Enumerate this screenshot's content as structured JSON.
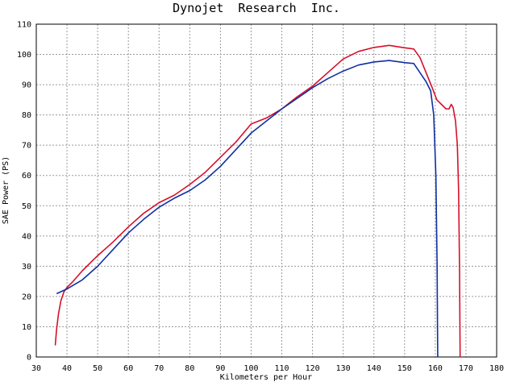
{
  "chart_data": {
    "type": "line",
    "title": "Dynojet  Research  Inc.",
    "xlabel": "Kilometers per Hour",
    "ylabel": "SAE Power (PS)",
    "xlim": [
      30,
      180
    ],
    "ylim": [
      0,
      110
    ],
    "x_ticks": [
      30,
      40,
      50,
      60,
      70,
      80,
      90,
      100,
      110,
      120,
      130,
      140,
      150,
      160,
      170,
      180
    ],
    "y_ticks": [
      0,
      10,
      20,
      30,
      40,
      50,
      60,
      70,
      80,
      90,
      100,
      110
    ],
    "grid": true,
    "legend": "none",
    "series": [
      {
        "color": "#d6102a",
        "points": [
          [
            36.2,
            4
          ],
          [
            36.6,
            9
          ],
          [
            37.2,
            14
          ],
          [
            38,
            18.5
          ],
          [
            39,
            21.5
          ],
          [
            40,
            23
          ],
          [
            42,
            25
          ],
          [
            45,
            28.5
          ],
          [
            50,
            33.5
          ],
          [
            55,
            38
          ],
          [
            60,
            43
          ],
          [
            65,
            47.5
          ],
          [
            70,
            51
          ],
          [
            75,
            53.5
          ],
          [
            80,
            57
          ],
          [
            85,
            61
          ],
          [
            90,
            66
          ],
          [
            95,
            71
          ],
          [
            100,
            77
          ],
          [
            105,
            79
          ],
          [
            110,
            82
          ],
          [
            115,
            86
          ],
          [
            120,
            89.5
          ],
          [
            125,
            94
          ],
          [
            130,
            98.5
          ],
          [
            135,
            101
          ],
          [
            140,
            102.3
          ],
          [
            145,
            103
          ],
          [
            150,
            102.2
          ],
          [
            153,
            101.8
          ],
          [
            155,
            99
          ],
          [
            157,
            94
          ],
          [
            159,
            89
          ],
          [
            160.5,
            85
          ],
          [
            162,
            83.5
          ],
          [
            163.5,
            82
          ],
          [
            164.5,
            82
          ],
          [
            165.2,
            83.5
          ],
          [
            165.8,
            82.5
          ],
          [
            166.6,
            78
          ],
          [
            167.2,
            70
          ],
          [
            167.6,
            55
          ],
          [
            167.9,
            30
          ],
          [
            168.1,
            0
          ]
        ]
      },
      {
        "color": "#1030a0",
        "points": [
          [
            36.8,
            21
          ],
          [
            40,
            22.5
          ],
          [
            45,
            25.5
          ],
          [
            50,
            30
          ],
          [
            55,
            35.5
          ],
          [
            60,
            41
          ],
          [
            65,
            45.5
          ],
          [
            70,
            49.5
          ],
          [
            75,
            52.5
          ],
          [
            80,
            55
          ],
          [
            85,
            58.5
          ],
          [
            90,
            63
          ],
          [
            95,
            68.5
          ],
          [
            100,
            74
          ],
          [
            105,
            78
          ],
          [
            110,
            82
          ],
          [
            115,
            85.5
          ],
          [
            120,
            89
          ],
          [
            125,
            92
          ],
          [
            130,
            94.5
          ],
          [
            135,
            96.5
          ],
          [
            140,
            97.5
          ],
          [
            145,
            98
          ],
          [
            150,
            97.3
          ],
          [
            153,
            97
          ],
          [
            155,
            94
          ],
          [
            157,
            91
          ],
          [
            158.5,
            88
          ],
          [
            159.5,
            80
          ],
          [
            160.2,
            60
          ],
          [
            160.6,
            30
          ],
          [
            160.8,
            0
          ]
        ]
      }
    ]
  }
}
